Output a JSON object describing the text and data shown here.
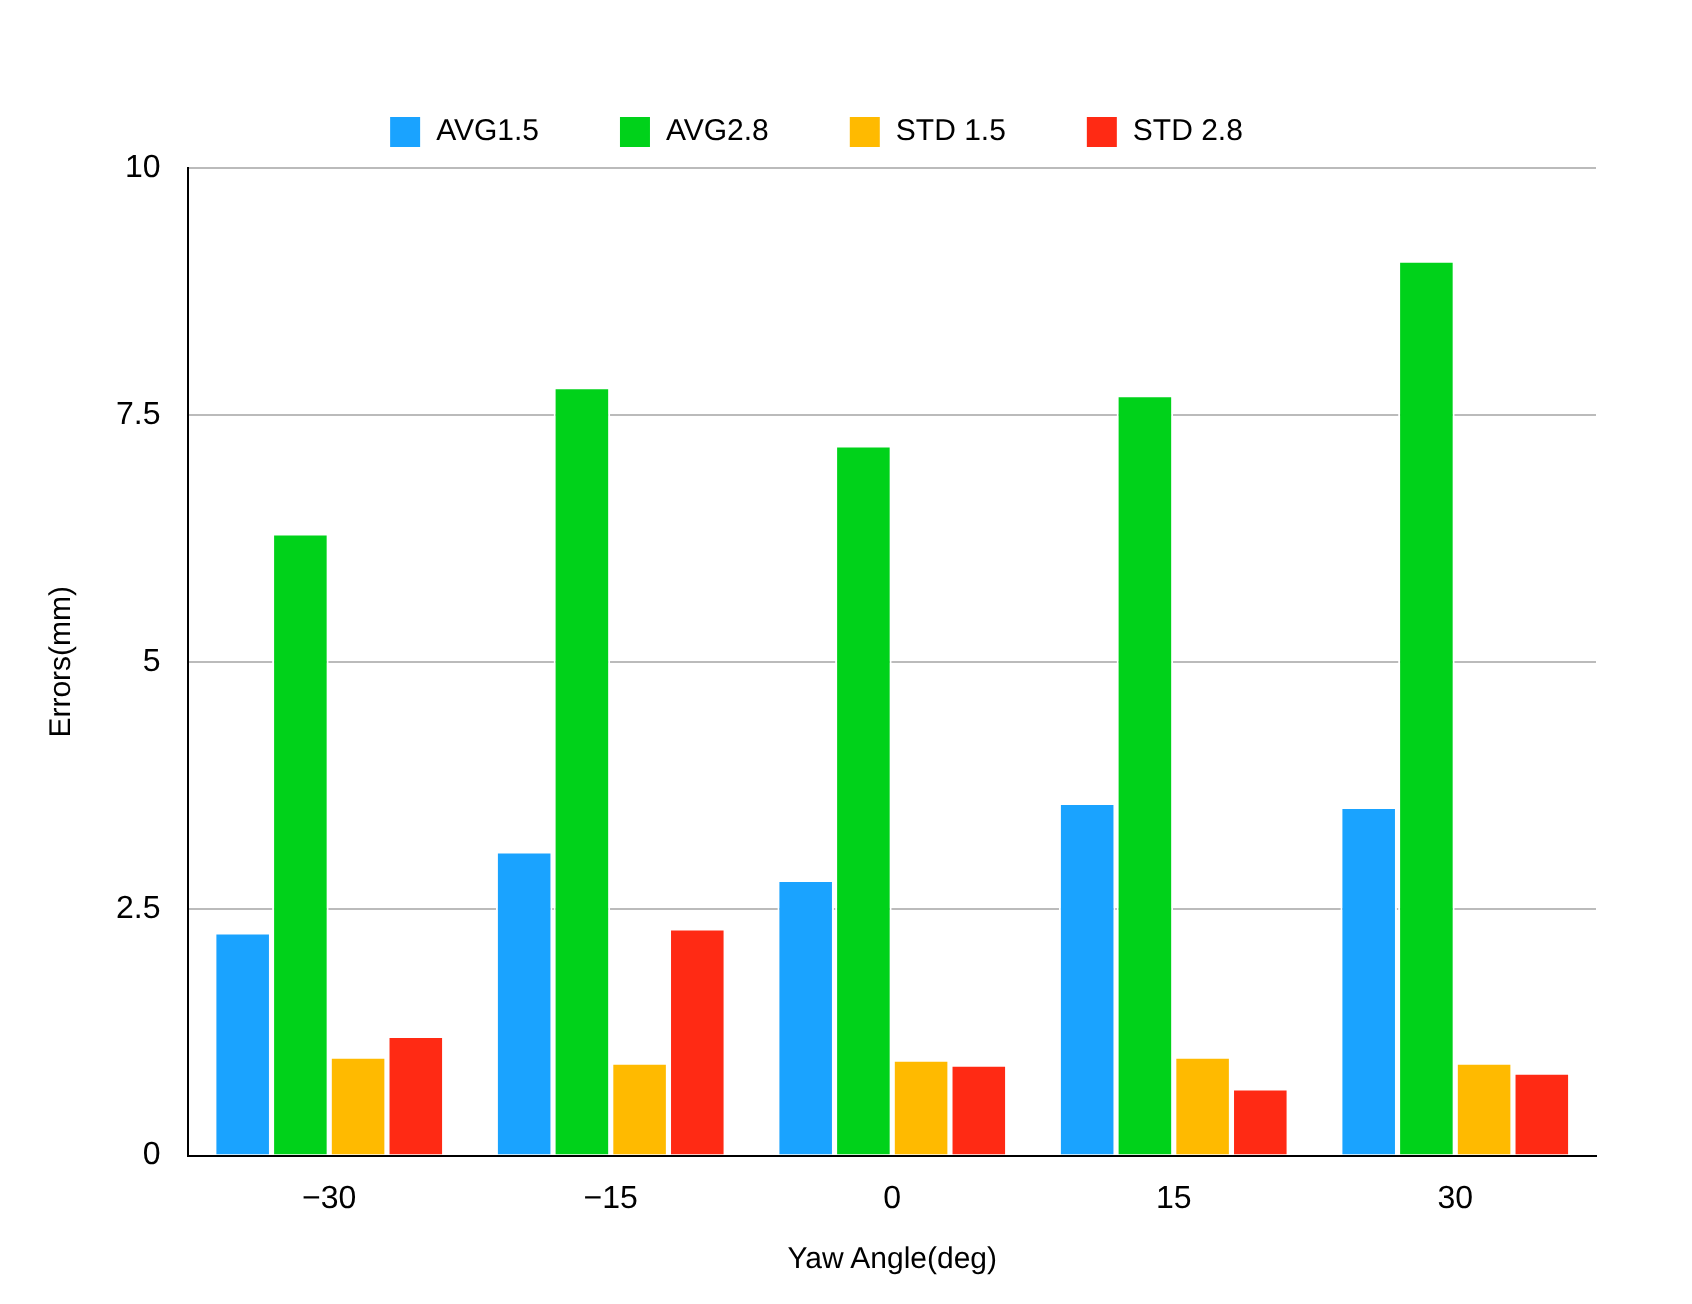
{
  "chart_data": {
    "type": "bar",
    "xlabel": "Yaw Angle(deg)",
    "ylabel": "Errors(mm)",
    "categories": [
      "−30",
      "−15",
      "0",
      "15",
      "30"
    ],
    "series": [
      {
        "name": "AVG1.5",
        "color": "#1aa3ff",
        "values": [
          2.26,
          3.08,
          2.79,
          3.57,
          3.53
        ]
      },
      {
        "name": "AVG2.8",
        "color": "#00d21a",
        "values": [
          6.3,
          7.78,
          7.19,
          7.7,
          9.06
        ]
      },
      {
        "name": "STD 1.5",
        "color": "#ffba00",
        "values": [
          1.0,
          0.94,
          0.97,
          1.0,
          0.94
        ]
      },
      {
        "name": "STD 2.8",
        "color": "#ff2a14",
        "values": [
          1.21,
          2.3,
          0.92,
          0.68,
          0.84
        ]
      }
    ],
    "ylim": [
      0,
      10
    ],
    "yticks": [
      0,
      2.5,
      5,
      7.5,
      10
    ],
    "grid": "y",
    "legend": "top"
  }
}
